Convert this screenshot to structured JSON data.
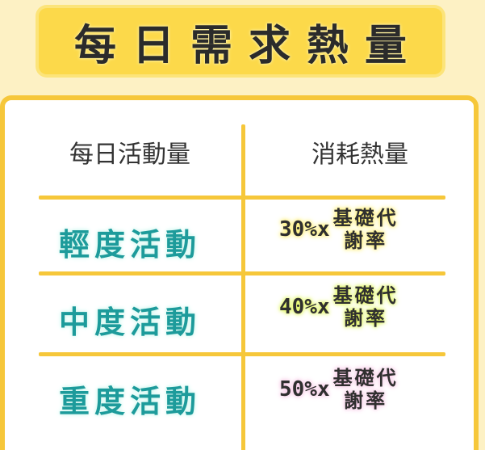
{
  "title": "每日需求熱量",
  "table": {
    "headers": [
      "每日活動量",
      "消耗熱量"
    ],
    "rows": [
      {
        "activity": "輕度活動",
        "percent": "30%x",
        "bmr_line1": "基礎代",
        "bmr_line2": "謝率"
      },
      {
        "activity": "中度活動",
        "percent": "40%x",
        "bmr_line1": "基礎代",
        "bmr_line2": "謝率"
      },
      {
        "activity": "重度活動",
        "percent": "50%x",
        "bmr_line1": "基礎代",
        "bmr_line2": "謝率"
      }
    ]
  },
  "colors": {
    "background": "#fdf1c4",
    "accent": "#f6c73a",
    "activity_text": "#1d9b9b",
    "glow_light": "#fde94d",
    "glow_moderate": "#d6f04a",
    "glow_heavy": "#f2b6dd"
  }
}
